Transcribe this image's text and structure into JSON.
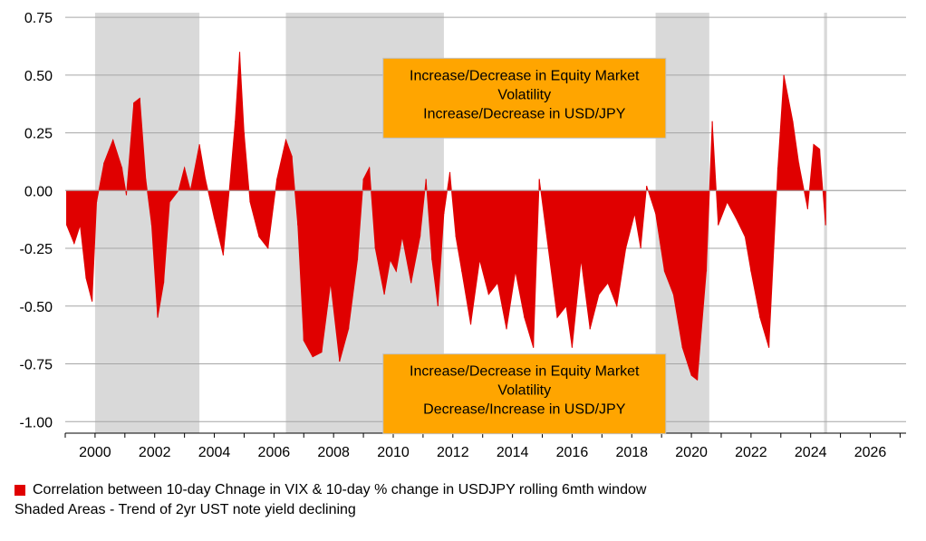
{
  "chart_data": {
    "type": "area",
    "title": "",
    "xlabel": "",
    "ylabel": "",
    "xlim": [
      1999.0,
      2027.2
    ],
    "ylim": [
      -1.05,
      0.77
    ],
    "yticks": [
      -1.0,
      -0.75,
      -0.5,
      -0.25,
      0.0,
      0.25,
      0.5,
      0.75
    ],
    "ytick_labels": [
      "-1.00",
      "-0.75",
      "-0.50",
      "-0.25",
      "0.00",
      "0.25",
      "0.50",
      "0.75"
    ],
    "xticks": [
      2000,
      2002,
      2004,
      2006,
      2008,
      2010,
      2012,
      2014,
      2016,
      2018,
      2020,
      2022,
      2024,
      2026
    ],
    "xtick_labels": [
      "2000",
      "2002",
      "2004",
      "2006",
      "2008",
      "2010",
      "2012",
      "2014",
      "2016",
      "2018",
      "2020",
      "2022",
      "2024",
      "2026"
    ],
    "grid": "horizontal",
    "series": [
      {
        "name": "Correlation between 10-day Chnage in VIX & 10-day % change in USDJPY rolling 6mth window",
        "color": "#e00000",
        "x": [
          1999.05,
          1999.3,
          1999.5,
          1999.7,
          1999.9,
          2000.05,
          2000.3,
          2000.6,
          2000.9,
          2001.05,
          2001.3,
          2001.5,
          2001.7,
          2001.9,
          2002.1,
          2002.3,
          2002.5,
          2002.8,
          2003.0,
          2003.2,
          2003.5,
          2003.7,
          2004.0,
          2004.3,
          2004.5,
          2004.7,
          2004.85,
          2005.0,
          2005.2,
          2005.5,
          2005.8,
          2006.1,
          2006.4,
          2006.6,
          2006.8,
          2007.0,
          2007.3,
          2007.6,
          2007.9,
          2008.2,
          2008.5,
          2008.8,
          2009.0,
          2009.2,
          2009.4,
          2009.7,
          2009.9,
          2010.1,
          2010.3,
          2010.6,
          2010.9,
          2011.1,
          2011.3,
          2011.5,
          2011.7,
          2011.9,
          2012.1,
          2012.3,
          2012.6,
          2012.9,
          2013.2,
          2013.5,
          2013.8,
          2014.1,
          2014.4,
          2014.7,
          2014.9,
          2015.2,
          2015.5,
          2015.8,
          2016.0,
          2016.3,
          2016.6,
          2016.9,
          2017.2,
          2017.5,
          2017.8,
          2018.1,
          2018.3,
          2018.5,
          2018.8,
          2019.1,
          2019.4,
          2019.7,
          2020.0,
          2020.2,
          2020.5,
          2020.7,
          2020.9,
          2021.2,
          2021.5,
          2021.8,
          2022.0,
          2022.3,
          2022.6,
          2022.9,
          2023.1,
          2023.4,
          2023.6,
          2023.9,
          2024.1,
          2024.3,
          2024.5
        ],
        "y": [
          -0.15,
          -0.23,
          -0.15,
          -0.38,
          -0.48,
          -0.05,
          0.12,
          0.22,
          0.1,
          -0.02,
          0.38,
          0.4,
          0.05,
          -0.15,
          -0.55,
          -0.4,
          -0.05,
          0.0,
          0.1,
          0.0,
          0.2,
          0.05,
          -0.12,
          -0.28,
          0.0,
          0.3,
          0.6,
          0.25,
          -0.05,
          -0.2,
          -0.25,
          0.05,
          0.22,
          0.15,
          -0.15,
          -0.65,
          -0.72,
          -0.7,
          -0.4,
          -0.74,
          -0.6,
          -0.3,
          0.05,
          0.1,
          -0.25,
          -0.45,
          -0.3,
          -0.35,
          -0.2,
          -0.4,
          -0.2,
          0.05,
          -0.3,
          -0.5,
          -0.1,
          0.08,
          -0.2,
          -0.35,
          -0.58,
          -0.3,
          -0.45,
          -0.4,
          -0.6,
          -0.35,
          -0.55,
          -0.68,
          0.05,
          -0.25,
          -0.55,
          -0.5,
          -0.68,
          -0.3,
          -0.6,
          -0.45,
          -0.4,
          -0.5,
          -0.25,
          -0.1,
          -0.25,
          0.02,
          -0.1,
          -0.35,
          -0.45,
          -0.68,
          -0.8,
          -0.82,
          -0.35,
          0.3,
          -0.15,
          -0.05,
          -0.12,
          -0.2,
          -0.35,
          -0.55,
          -0.68,
          0.1,
          0.5,
          0.3,
          0.12,
          -0.08,
          0.2,
          0.18,
          -0.15
        ]
      }
    ],
    "shaded_regions": {
      "name": "Shaded Areas - Trend of 2yr UST note yield declining",
      "color": "#d9d9d9",
      "ranges": [
        [
          2000.0,
          2003.5
        ],
        [
          2006.4,
          2011.7
        ],
        [
          2018.8,
          2020.6
        ],
        [
          2024.45,
          2024.55
        ]
      ]
    },
    "annotations": [
      {
        "id": "upper",
        "lines": [
          "Increase/Decrease in Equity Market",
          "Volatility",
          "Increase/Decrease in USD/JPY"
        ],
        "anchor_x": 2014.4,
        "anchor_y": 0.4,
        "color": "#ffa500"
      },
      {
        "id": "lower",
        "lines": [
          "Increase/Decrease in Equity Market",
          "Volatility",
          "Decrease/Increase in USD/JPY"
        ],
        "anchor_x": 2014.4,
        "anchor_y": -0.88,
        "color": "#ffa500"
      }
    ],
    "legend": {
      "placement": "bottom-left",
      "entries": [
        {
          "label": "Correlation between 10-day Chnage in VIX & 10-day % change in USDJPY rolling 6mth window",
          "color": "#e00000",
          "swatch": true
        },
        {
          "label": "Shaded Areas - Trend of 2yr UST note yield declining",
          "color": "",
          "swatch": false
        }
      ]
    }
  }
}
